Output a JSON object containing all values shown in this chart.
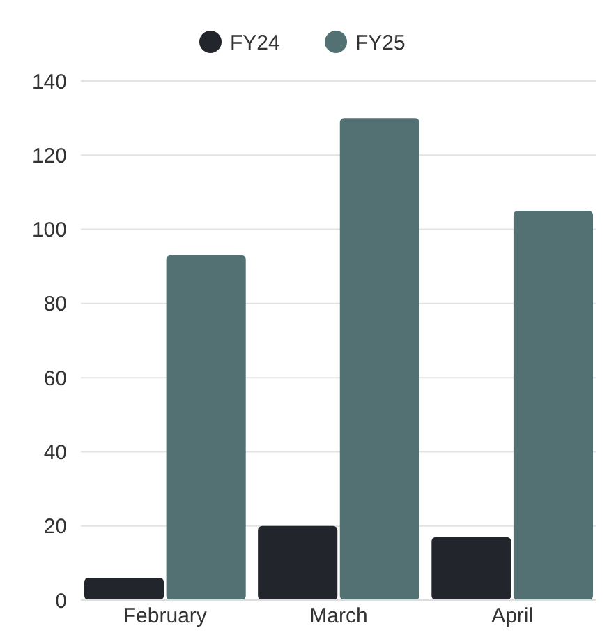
{
  "chart_data": {
    "type": "bar",
    "categories": [
      "February",
      "March",
      "April"
    ],
    "series": [
      {
        "name": "FY24",
        "color": "#22252b",
        "values": [
          6,
          20,
          17
        ]
      },
      {
        "name": "FY25",
        "color": "#537072",
        "values": [
          93,
          130,
          105
        ]
      }
    ],
    "ylim": [
      0,
      140
    ],
    "yticks": [
      0,
      20,
      40,
      60,
      80,
      100,
      120,
      140
    ],
    "grid": "y",
    "legend": "top"
  }
}
